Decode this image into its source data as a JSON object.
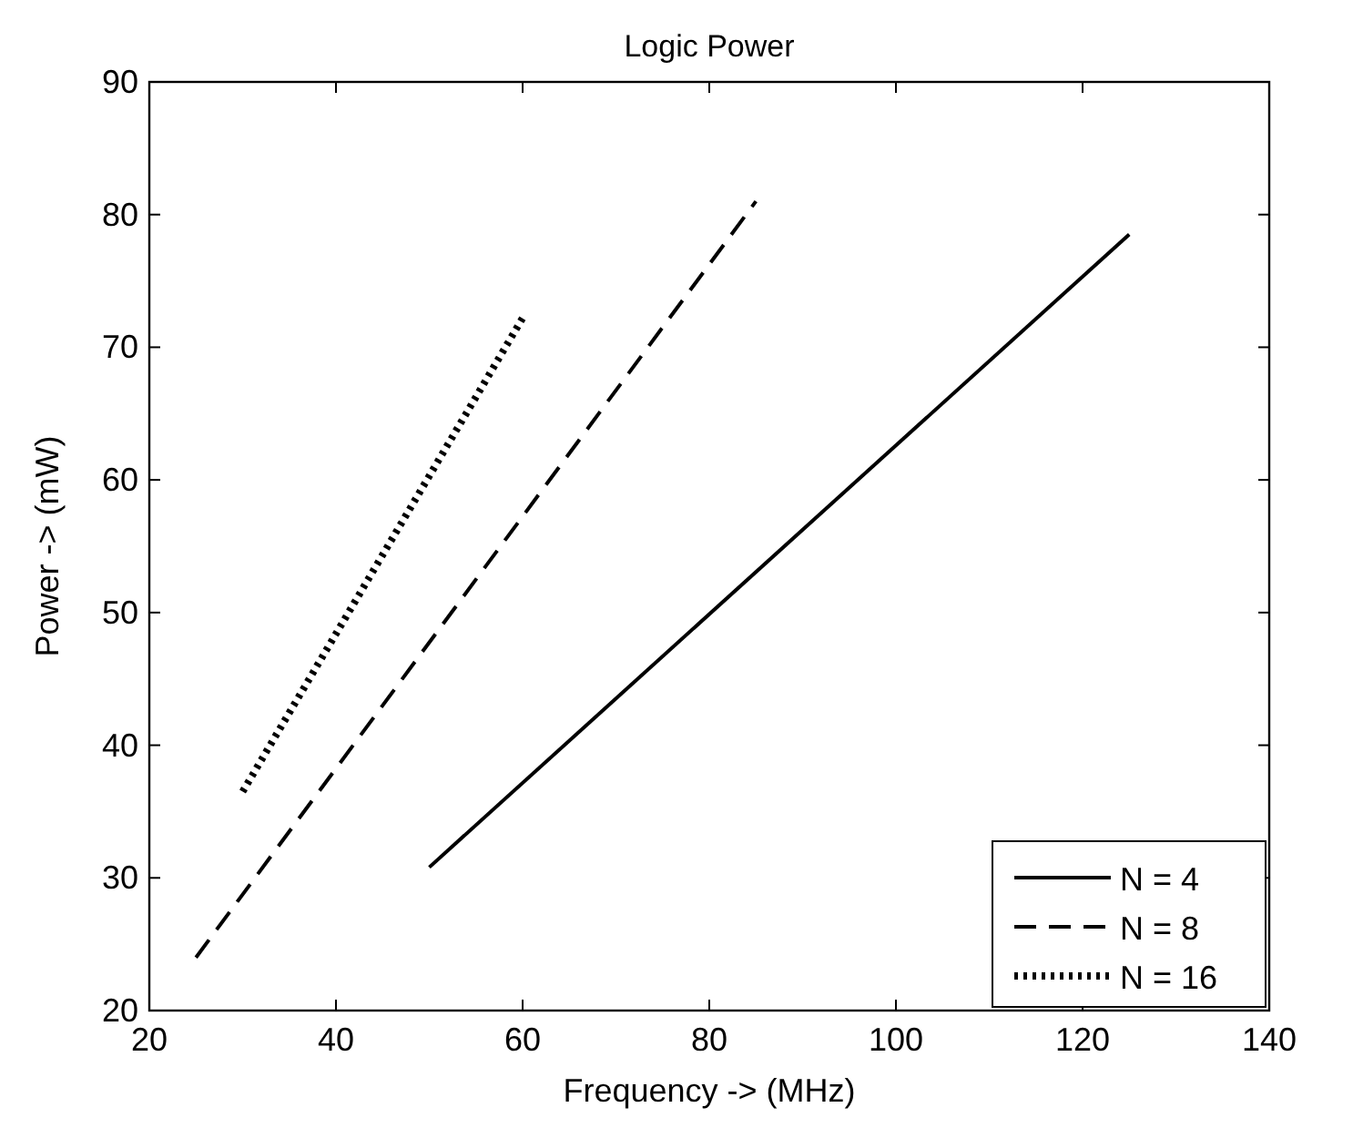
{
  "chart_data": {
    "type": "line",
    "title": "Logic Power",
    "xlabel": "Frequency -> (MHz)",
    "ylabel": "Power -> (mW)",
    "xlim": [
      20,
      140
    ],
    "xticks": [
      20,
      40,
      60,
      80,
      100,
      120,
      140
    ],
    "ylim": [
      20,
      90
    ],
    "yticks": [
      20,
      30,
      40,
      50,
      60,
      70,
      80,
      90
    ],
    "grid": false,
    "legend": "bottom right",
    "marker": "none",
    "series": [
      {
        "name": "N = 4",
        "color": "#000000",
        "line_style": "solid",
        "x": [
          50,
          125
        ],
        "values": [
          30.8,
          78.5
        ]
      },
      {
        "name": "N = 8",
        "color": "#000000",
        "line_style": "dashed",
        "x": [
          25,
          85
        ],
        "values": [
          24,
          81
        ]
      },
      {
        "name": "N = 16",
        "color": "#000000",
        "line_style": "dotted",
        "x": [
          30,
          60
        ],
        "values": [
          36.5,
          72.2
        ]
      }
    ]
  }
}
